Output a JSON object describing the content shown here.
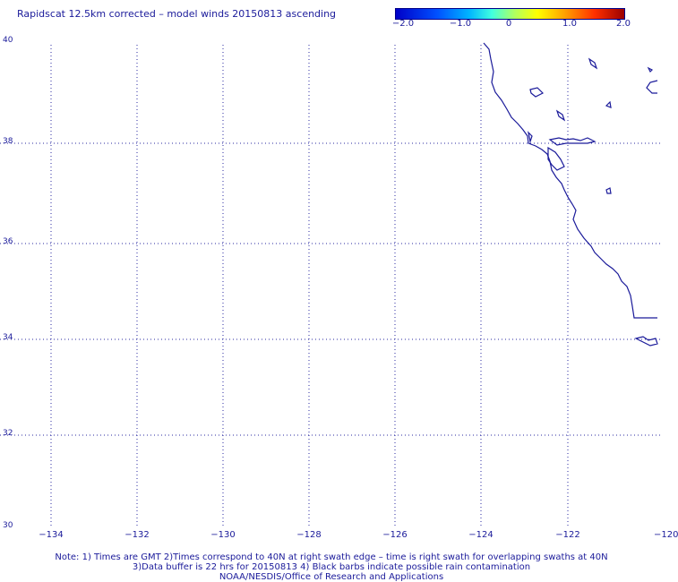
{
  "title": "Rapidscat 12.5km corrected – model winds 20150813 ascending",
  "colorbar": {
    "ticks": [
      "−2.0",
      "−1.0",
      "0",
      "1.0",
      "2.0"
    ],
    "colors": [
      "#0000c8",
      "#00b4ff",
      "#40ffe0",
      "#ffff00",
      "#ff3000",
      "#9a0000"
    ]
  },
  "map": {
    "lat_labels": [
      "40",
      "38",
      "36",
      "34",
      "32",
      "30"
    ],
    "lon_labels": [
      "−134",
      "−132",
      "−130",
      "−128",
      "−126",
      "−124",
      "−122",
      "−120"
    ],
    "grid": true,
    "coastline_color": "#1a1a9a"
  },
  "notes": {
    "line1": "Note: 1) Times are GMT 2)Times correspond to 40N at right swath edge – time is right swath for overlapping swaths at 40N",
    "line2": "3)Data buffer is 22 hrs for 20150813 4) Black barbs indicate possible rain contamination",
    "line3": "NOAA/NESDIS/Office of Research and Applications"
  }
}
